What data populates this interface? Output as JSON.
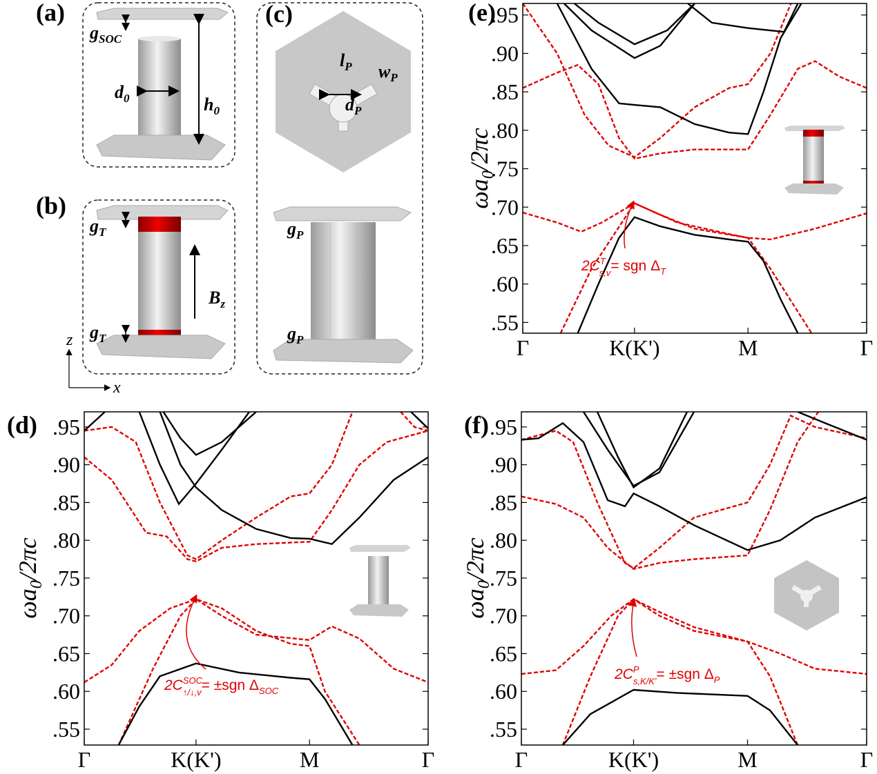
{
  "schematics": {
    "a": {
      "label": "(a)",
      "g": {
        "base": "g",
        "sub": "SOC"
      },
      "d": {
        "base": "d",
        "sub": "0"
      },
      "h": {
        "base": "h",
        "sub": "0"
      }
    },
    "b": {
      "label": "(b)",
      "g_top": {
        "base": "g",
        "sub": "T"
      },
      "g_bottom": {
        "base": "g",
        "sub": "T"
      },
      "field": {
        "base": "B",
        "sub": "z"
      },
      "axis_z": "z",
      "axis_x": "x"
    },
    "c": {
      "label": "(c)",
      "l": {
        "base": "l",
        "sub": "P"
      },
      "w": {
        "base": "w",
        "sub": "P"
      },
      "d": {
        "base": "d",
        "sub": "P"
      },
      "g_top": {
        "base": "g",
        "sub": "P"
      },
      "g_bottom": {
        "base": "g",
        "sub": "P"
      }
    }
  },
  "chart_data": [
    {
      "type": "line",
      "panel_label": "(e)",
      "y_label": {
        "base": "ωa",
        "sub": "0",
        "rest": "/2πc"
      },
      "annotation": {
        "base": "2C",
        "sup": "T",
        "sub": "s,v",
        "rest": "= sgn Δ",
        "rest_sub": "T"
      },
      "xlim": [
        0,
        1
      ],
      "ylim": [
        0.536,
        0.965
      ],
      "xticks": [
        {
          "value": 0,
          "label": "Γ"
        },
        {
          "value": 0.325,
          "label": "K(K')"
        },
        {
          "value": 0.655,
          "label": "M"
        },
        {
          "value": 1,
          "label": "Γ"
        }
      ],
      "yticks": [
        {
          "value": 0.55,
          "label": ".55"
        },
        {
          "value": 0.6,
          "label": ".60"
        },
        {
          "value": 0.65,
          "label": ".65"
        },
        {
          "value": 0.7,
          "label": ".70"
        },
        {
          "value": 0.75,
          "label": ".75"
        },
        {
          "value": 0.8,
          "label": ".80"
        },
        {
          "value": 0.85,
          "label": ".85"
        },
        {
          "value": 0.9,
          "label": ".90"
        },
        {
          "value": 0.95,
          "label": ".95"
        }
      ],
      "series": [
        {
          "color": "#e00000",
          "style": "dashed",
          "x": [
            0,
            0.1,
            0.16,
            0.22,
            0.28,
            0.325,
            0.4,
            0.5,
            0.655,
            0.72,
            0.8,
            0.85,
            0.92,
            1
          ],
          "values": [
            0.855,
            0.875,
            0.885,
            0.86,
            0.79,
            0.763,
            0.77,
            0.775,
            0.775,
            0.82,
            0.88,
            0.89,
            0.87,
            0.855
          ]
        },
        {
          "color": "#e00000",
          "style": "dashed",
          "x": [
            0,
            0.1,
            0.18,
            0.25,
            0.325,
            0.4,
            0.5,
            0.6,
            0.655,
            0.72,
            0.78
          ],
          "values": [
            0.965,
            0.9,
            0.82,
            0.78,
            0.765,
            0.79,
            0.83,
            0.855,
            0.86,
            0.9,
            0.965
          ]
        },
        {
          "color": "#e00000",
          "style": "dashed",
          "x": [
            0,
            0.1,
            0.17,
            0.23,
            0.325,
            0.4,
            0.5,
            0.655,
            0.72,
            0.85,
            1
          ],
          "values": [
            0.693,
            0.68,
            0.668,
            0.68,
            0.705,
            0.69,
            0.672,
            0.66,
            0.658,
            0.672,
            0.692
          ]
        },
        {
          "color": "#e00000",
          "style": "dashed",
          "x": [
            0.11,
            0.2,
            0.325,
            0.45,
            0.6,
            0.655,
            0.72,
            0.84
          ],
          "values": [
            0.536,
            0.62,
            0.705,
            0.68,
            0.665,
            0.66,
            0.62,
            0.536
          ]
        },
        {
          "color": "#000000",
          "style": "solid",
          "x": [
            0.16,
            0.22,
            0.28,
            0.325,
            0.4,
            0.5,
            0.6,
            0.655,
            0.7,
            0.75,
            0.8
          ],
          "values": [
            0.536,
            0.6,
            0.66,
            0.687,
            0.675,
            0.664,
            0.658,
            0.655,
            0.63,
            0.58,
            0.536
          ]
        },
        {
          "color": "#000000",
          "style": "solid",
          "x": [
            0.1,
            0.2,
            0.28,
            0.325,
            0.4,
            0.5,
            0.6,
            0.655,
            0.7,
            0.75,
            0.81
          ],
          "values": [
            0.965,
            0.88,
            0.835,
            0.833,
            0.83,
            0.808,
            0.797,
            0.795,
            0.85,
            0.92,
            0.965
          ]
        },
        {
          "color": "#000000",
          "style": "solid",
          "x": [
            0.12,
            0.2,
            0.325,
            0.4,
            0.5
          ],
          "values": [
            0.965,
            0.93,
            0.894,
            0.91,
            0.965
          ]
        },
        {
          "color": "#000000",
          "style": "solid",
          "x": [
            0.15,
            0.22,
            0.325,
            0.42,
            0.5
          ],
          "values": [
            0.965,
            0.94,
            0.912,
            0.93,
            0.965
          ]
        },
        {
          "color": "#000000",
          "style": "solid",
          "x": [
            0.48,
            0.55,
            0.655,
            0.76,
            0.8
          ],
          "values": [
            0.965,
            0.94,
            0.933,
            0.928,
            0.965
          ]
        }
      ]
    },
    {
      "type": "line",
      "panel_label": "(d)",
      "y_label": {
        "base": "ωa",
        "sub": "0",
        "rest": "/2πc"
      },
      "annotation": {
        "base": "2C",
        "sup": "SOC",
        "sub": "↑/↓,v",
        "rest": "= ±sgn Δ",
        "rest_sub": "SOC"
      },
      "xlim": [
        0,
        1
      ],
      "ylim": [
        0.529,
        0.97
      ],
      "xticks": [
        {
          "value": 0,
          "label": "Γ"
        },
        {
          "value": 0.325,
          "label": "K(K')"
        },
        {
          "value": 0.655,
          "label": "M"
        },
        {
          "value": 1,
          "label": "Γ"
        }
      ],
      "yticks": [
        {
          "value": 0.55,
          "label": ".55"
        },
        {
          "value": 0.6,
          "label": ".60"
        },
        {
          "value": 0.65,
          "label": ".65"
        },
        {
          "value": 0.7,
          "label": ".70"
        },
        {
          "value": 0.75,
          "label": ".75"
        },
        {
          "value": 0.8,
          "label": ".80"
        },
        {
          "value": 0.85,
          "label": ".85"
        },
        {
          "value": 0.9,
          "label": ".90"
        },
        {
          "value": 0.95,
          "label": ".95"
        }
      ],
      "series": [
        {
          "color": "#e00000",
          "style": "dashed",
          "x": [
            0,
            0.08,
            0.18,
            0.24,
            0.3,
            0.325,
            0.4,
            0.5,
            0.655,
            0.72,
            0.8,
            0.88,
            1
          ],
          "values": [
            0.91,
            0.88,
            0.81,
            0.805,
            0.775,
            0.772,
            0.79,
            0.795,
            0.798,
            0.84,
            0.9,
            0.93,
            0.945
          ]
        },
        {
          "color": "#e00000",
          "style": "dashed",
          "x": [
            0,
            0.08,
            0.15,
            0.22,
            0.3,
            0.325,
            0.4,
            0.5,
            0.6,
            0.655,
            0.72,
            0.78
          ],
          "values": [
            0.945,
            0.95,
            0.93,
            0.85,
            0.78,
            0.775,
            0.8,
            0.83,
            0.858,
            0.862,
            0.9,
            0.97
          ]
        },
        {
          "color": "#e00000",
          "style": "dashed",
          "x": [
            0.92,
            0.96,
            1
          ],
          "values": [
            0.97,
            0.95,
            0.945
          ]
        },
        {
          "color": "#e00000",
          "style": "dashed",
          "x": [
            0,
            0.08,
            0.16,
            0.25,
            0.325,
            0.4,
            0.5,
            0.655,
            0.72,
            0.8,
            0.9,
            1
          ],
          "values": [
            0.612,
            0.635,
            0.68,
            0.71,
            0.722,
            0.7,
            0.675,
            0.668,
            0.686,
            0.67,
            0.63,
            0.612
          ]
        },
        {
          "color": "#e00000",
          "style": "dashed",
          "x": [
            0.1,
            0.2,
            0.28,
            0.325,
            0.4,
            0.5,
            0.6,
            0.655,
            0.7,
            0.8
          ],
          "values": [
            0.529,
            0.63,
            0.7,
            0.722,
            0.71,
            0.68,
            0.663,
            0.66,
            0.6,
            0.529
          ]
        },
        {
          "color": "#000000",
          "style": "solid",
          "x": [
            0.1,
            0.16,
            0.22,
            0.325,
            0.45,
            0.6,
            0.655,
            0.7,
            0.78
          ],
          "values": [
            0.529,
            0.58,
            0.62,
            0.637,
            0.625,
            0.618,
            0.616,
            0.59,
            0.529
          ]
        },
        {
          "color": "#000000",
          "style": "solid",
          "x": [
            0,
            0.06
          ],
          "values": [
            0.945,
            0.97
          ]
        },
        {
          "color": "#000000",
          "style": "solid",
          "x": [
            0.16,
            0.22,
            0.275,
            0.325,
            0.4,
            0.48
          ],
          "values": [
            0.97,
            0.9,
            0.848,
            0.875,
            0.92,
            0.97
          ]
        },
        {
          "color": "#000000",
          "style": "solid",
          "x": [
            0.22,
            0.28,
            0.325,
            0.4,
            0.5,
            0.6,
            0.655,
            0.72,
            0.8,
            0.9,
            1
          ],
          "values": [
            0.97,
            0.9,
            0.87,
            0.84,
            0.815,
            0.803,
            0.802,
            0.795,
            0.83,
            0.88,
            0.91
          ]
        },
        {
          "color": "#000000",
          "style": "solid",
          "x": [
            0.23,
            0.28,
            0.325,
            0.4,
            0.5
          ],
          "values": [
            0.97,
            0.935,
            0.913,
            0.93,
            0.97
          ]
        },
        {
          "color": "#000000",
          "style": "solid",
          "x": [
            0.95,
            1
          ],
          "values": [
            0.97,
            0.948
          ]
        }
      ]
    },
    {
      "type": "line",
      "panel_label": "(f)",
      "y_label": {
        "base": "ωa",
        "sub": "0",
        "rest": "/2πc"
      },
      "annotation": {
        "base": "2C",
        "sup": "P",
        "sub": "s,K/K'",
        "rest": "= ±sgn Δ",
        "rest_sub": "P"
      },
      "xlim": [
        0,
        1
      ],
      "ylim": [
        0.529,
        0.97
      ],
      "xticks": [
        {
          "value": 0,
          "label": "Γ"
        },
        {
          "value": 0.325,
          "label": "K(K')"
        },
        {
          "value": 0.655,
          "label": "M"
        },
        {
          "value": 1,
          "label": "Γ"
        }
      ],
      "yticks": [
        {
          "value": 0.55,
          "label": ".55"
        },
        {
          "value": 0.6,
          "label": ".60"
        },
        {
          "value": 0.65,
          "label": ".65"
        },
        {
          "value": 0.7,
          "label": ".70"
        },
        {
          "value": 0.75,
          "label": ".75"
        },
        {
          "value": 0.8,
          "label": ".80"
        },
        {
          "value": 0.85,
          "label": ".85"
        },
        {
          "value": 0.9,
          "label": ".90"
        },
        {
          "value": 0.95,
          "label": ".95"
        }
      ],
      "series": [
        {
          "color": "#e00000",
          "style": "dashed",
          "x": [
            0,
            0.1,
            0.18,
            0.25,
            0.325,
            0.4,
            0.5,
            0.655,
            0.72,
            0.8,
            0.86
          ],
          "values": [
            0.858,
            0.848,
            0.83,
            0.79,
            0.762,
            0.77,
            0.775,
            0.78,
            0.84,
            0.93,
            0.97
          ]
        },
        {
          "color": "#e00000",
          "style": "dashed",
          "x": [
            0,
            0.1,
            0.15,
            0.22,
            0.3,
            0.325,
            0.4,
            0.5,
            0.655,
            0.72,
            0.78,
            0.85,
            1
          ],
          "values": [
            0.933,
            0.945,
            0.93,
            0.85,
            0.77,
            0.763,
            0.79,
            0.83,
            0.85,
            0.9,
            0.965,
            0.95,
            0.935
          ]
        },
        {
          "color": "#e00000",
          "style": "dashed",
          "x": [
            0,
            0.1,
            0.18,
            0.26,
            0.325,
            0.4,
            0.5,
            0.655,
            0.75,
            0.85,
            1
          ],
          "values": [
            0.623,
            0.628,
            0.66,
            0.7,
            0.722,
            0.705,
            0.685,
            0.666,
            0.65,
            0.63,
            0.623
          ]
        },
        {
          "color": "#e00000",
          "style": "dashed",
          "x": [
            0.12,
            0.2,
            0.28,
            0.325,
            0.4,
            0.5,
            0.655,
            0.72,
            0.8
          ],
          "values": [
            0.529,
            0.62,
            0.7,
            0.722,
            0.7,
            0.68,
            0.666,
            0.62,
            0.529
          ]
        },
        {
          "color": "#000000",
          "style": "solid",
          "x": [
            0.12,
            0.2,
            0.325,
            0.45,
            0.655,
            0.72,
            0.8
          ],
          "values": [
            0.529,
            0.57,
            0.602,
            0.598,
            0.594,
            0.575,
            0.529
          ]
        },
        {
          "color": "#000000",
          "style": "solid",
          "x": [
            0,
            0.05,
            0.12,
            0.18,
            0.25,
            0.3,
            0.325,
            0.4,
            0.5,
            0.655,
            0.75,
            0.85,
            1
          ],
          "values": [
            0.933,
            0.935,
            0.955,
            0.93,
            0.853,
            0.845,
            0.862,
            0.845,
            0.82,
            0.787,
            0.8,
            0.83,
            0.857
          ]
        },
        {
          "color": "#000000",
          "style": "solid",
          "x": [
            0.18,
            0.25,
            0.325,
            0.4,
            0.5
          ],
          "values": [
            0.97,
            0.92,
            0.872,
            0.89,
            0.97
          ]
        },
        {
          "color": "#000000",
          "style": "solid",
          "x": [
            0.22,
            0.28,
            0.325,
            0.4,
            0.48
          ],
          "values": [
            0.97,
            0.91,
            0.87,
            0.895,
            0.97
          ]
        },
        {
          "color": "#000000",
          "style": "solid",
          "x": [
            0.8,
            0.88,
            1
          ],
          "values": [
            0.97,
            0.955,
            0.933
          ]
        }
      ]
    }
  ]
}
